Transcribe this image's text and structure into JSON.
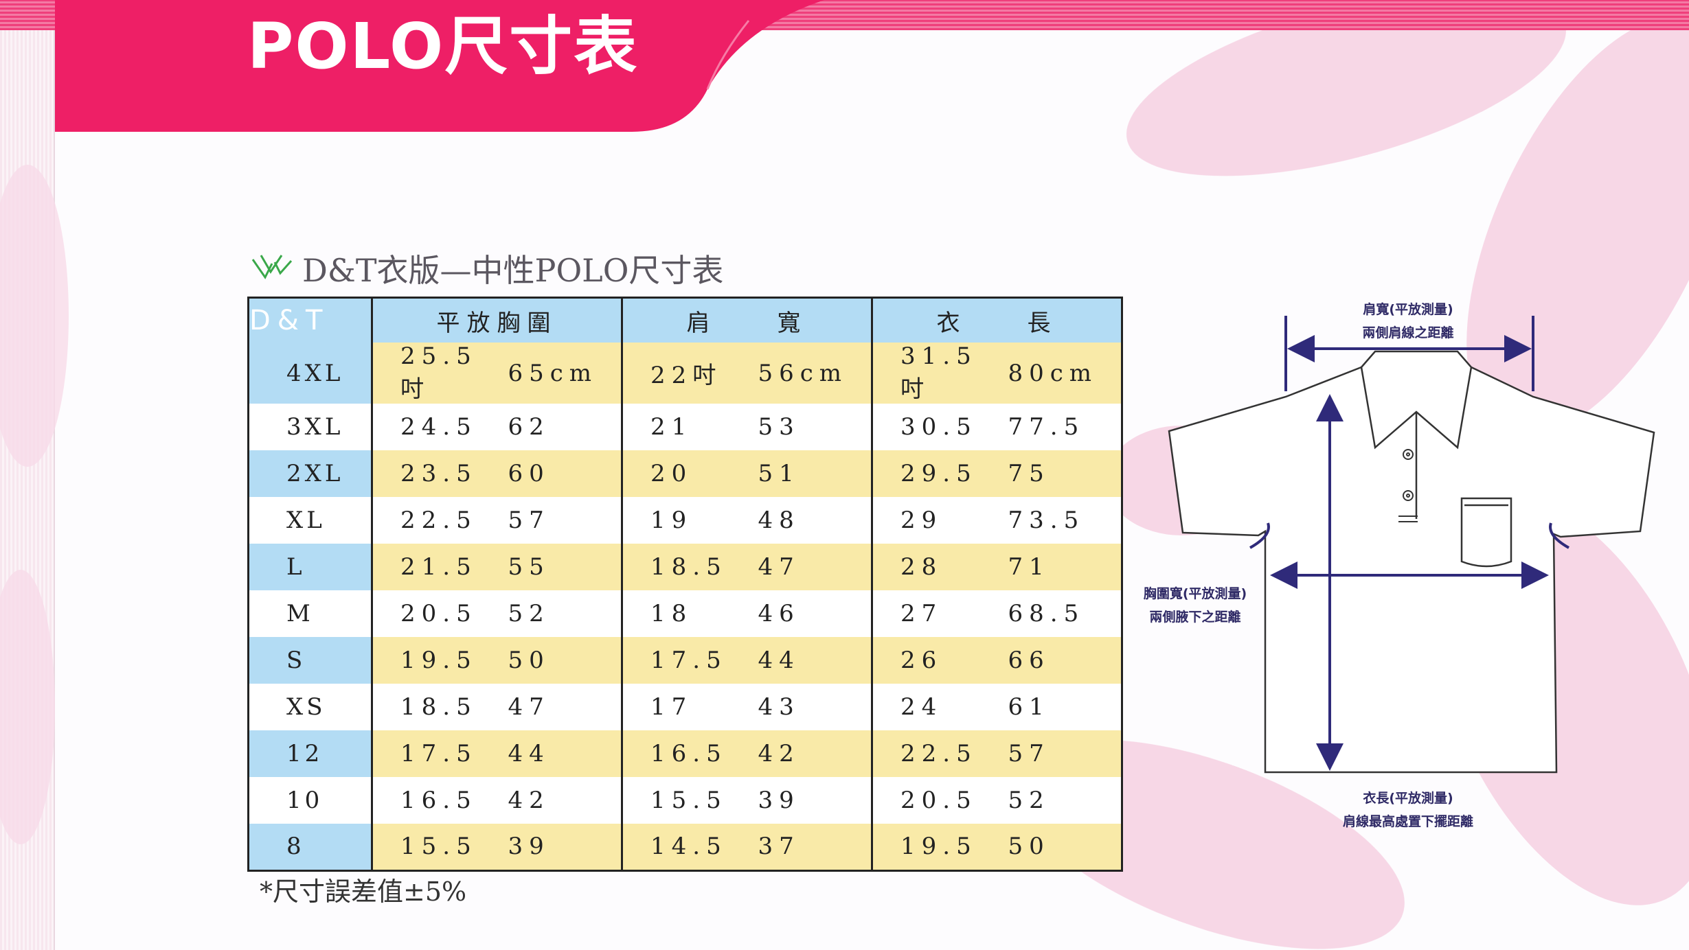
{
  "header": {
    "title": "POLO尺寸表"
  },
  "section": {
    "subtitle": "D&T衣版—中性POLO尺寸表"
  },
  "table": {
    "headers": {
      "brand": "D&T",
      "chest": "平放胸圍",
      "shoulder": "肩　　寬",
      "length": "衣　　長"
    },
    "rows": [
      {
        "size": "4XL",
        "chest_in": "25.5吋",
        "chest_cm": "65cm",
        "shoulder_in": "22吋",
        "shoulder_cm": "56cm",
        "length_in": "31.5吋",
        "length_cm": "80cm"
      },
      {
        "size": "3XL",
        "chest_in": "24.5",
        "chest_cm": "62",
        "shoulder_in": "21",
        "shoulder_cm": "53",
        "length_in": "30.5",
        "length_cm": "77.5"
      },
      {
        "size": "2XL",
        "chest_in": "23.5",
        "chest_cm": "60",
        "shoulder_in": "20",
        "shoulder_cm": "51",
        "length_in": "29.5",
        "length_cm": "75"
      },
      {
        "size": "XL",
        "chest_in": "22.5",
        "chest_cm": "57",
        "shoulder_in": "19",
        "shoulder_cm": "48",
        "length_in": "29",
        "length_cm": "73.5"
      },
      {
        "size": "L",
        "chest_in": "21.5",
        "chest_cm": "55",
        "shoulder_in": "18.5",
        "shoulder_cm": "47",
        "length_in": "28",
        "length_cm": "71"
      },
      {
        "size": "M",
        "chest_in": "20.5",
        "chest_cm": "52",
        "shoulder_in": "18",
        "shoulder_cm": "46",
        "length_in": "27",
        "length_cm": "68.5"
      },
      {
        "size": "S",
        "chest_in": "19.5",
        "chest_cm": "50",
        "shoulder_in": "17.5",
        "shoulder_cm": "44",
        "length_in": "26",
        "length_cm": "66"
      },
      {
        "size": "XS",
        "chest_in": "18.5",
        "chest_cm": "47",
        "shoulder_in": "17",
        "shoulder_cm": "43",
        "length_in": "24",
        "length_cm": "61"
      },
      {
        "size": "12",
        "chest_in": "17.5",
        "chest_cm": "44",
        "shoulder_in": "16.5",
        "shoulder_cm": "42",
        "length_in": "22.5",
        "length_cm": "57"
      },
      {
        "size": "10",
        "chest_in": "16.5",
        "chest_cm": "42",
        "shoulder_in": "15.5",
        "shoulder_cm": "39",
        "length_in": "20.5",
        "length_cm": "52"
      },
      {
        "size": "8",
        "chest_in": "15.5",
        "chest_cm": "39",
        "shoulder_in": "14.5",
        "shoulder_cm": "37",
        "length_in": "19.5",
        "length_cm": "50"
      }
    ]
  },
  "note": "*尺寸誤差值±5%",
  "diagram": {
    "shoulder_label_1": "肩寬(平放測量)",
    "shoulder_label_2": "兩側肩線之距離",
    "chest_label_1": "胸圍寬(平放測量)",
    "chest_label_2": "兩側腋下之距離",
    "length_label_1": "衣長(平放測量)",
    "length_label_2": "肩線最高處置下擺距離"
  },
  "colors": {
    "banner": "#ee1f66",
    "header_blue": "#b3dcf4",
    "row_yellow": "#f9eaa8",
    "measure_line": "#2f2a7a"
  }
}
